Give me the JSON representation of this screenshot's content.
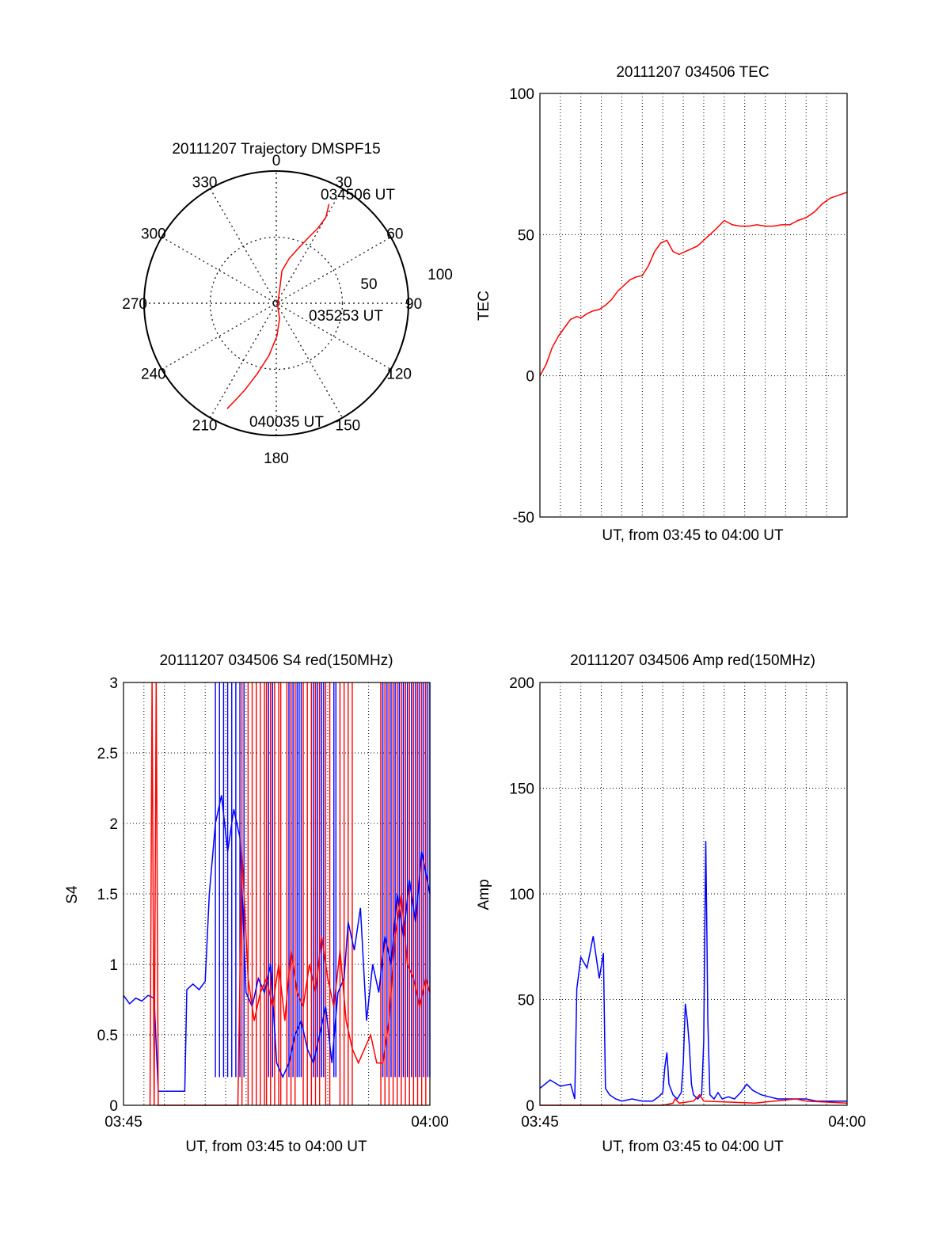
{
  "colors": {
    "red": "#ff0000",
    "blue": "#0000ff",
    "axis": "#000000",
    "grid": "#000000"
  },
  "chart_data": [
    {
      "type": "polar",
      "title": "20111207 Trajectory DMSPF15",
      "angle_labels": [
        "0",
        "30",
        "60",
        "90",
        "120",
        "150",
        "180",
        "210",
        "240",
        "270",
        "300",
        "330"
      ],
      "radius_labels": [
        "50",
        "100"
      ],
      "rlim": [
        0,
        100
      ],
      "grid": true,
      "annotations": [
        "034506 UT",
        "035253 UT",
        "040035 UT"
      ],
      "series": [
        {
          "color": "red",
          "points": [
            [
              28,
              85
            ],
            [
              30,
              75
            ],
            [
              29,
              65
            ],
            [
              26,
              55
            ],
            [
              22,
              45
            ],
            [
              16,
              35
            ],
            [
              10,
              25
            ],
            [
              150,
              2
            ],
            [
              168,
              12
            ],
            [
              179,
              25
            ],
            [
              188,
              40
            ],
            [
              195,
              55
            ],
            [
              200,
              70
            ],
            [
              203,
              80
            ],
            [
              205,
              88
            ]
          ]
        }
      ]
    },
    {
      "type": "line",
      "title": "20111207 034506 TEC",
      "xlabel": "UT, from 03:45 to 04:00 UT",
      "ylabel": "TEC",
      "xlim": [
        0,
        15
      ],
      "ylim": [
        -50,
        100
      ],
      "yticks": [
        "-50",
        "0",
        "50",
        "100"
      ],
      "xticks": [],
      "grid": true,
      "series": [
        {
          "color": "red",
          "points": [
            [
              0,
              0
            ],
            [
              0.3,
              4
            ],
            [
              0.6,
              10
            ],
            [
              0.9,
              14
            ],
            [
              1.2,
              17
            ],
            [
              1.5,
              20
            ],
            [
              1.8,
              21
            ],
            [
              2.0,
              20.5
            ],
            [
              2.3,
              22
            ],
            [
              2.6,
              23
            ],
            [
              2.9,
              23.5
            ],
            [
              3.2,
              25
            ],
            [
              3.5,
              27
            ],
            [
              3.8,
              30
            ],
            [
              4.1,
              32
            ],
            [
              4.4,
              34
            ],
            [
              4.7,
              35
            ],
            [
              5.0,
              35.5
            ],
            [
              5.3,
              39
            ],
            [
              5.6,
              44
            ],
            [
              5.9,
              47
            ],
            [
              6.2,
              48
            ],
            [
              6.5,
              44
            ],
            [
              6.8,
              43
            ],
            [
              7.1,
              44
            ],
            [
              7.4,
              45
            ],
            [
              7.7,
              46
            ],
            [
              8.0,
              48
            ],
            [
              8.3,
              50
            ],
            [
              8.6,
              52
            ],
            [
              9.0,
              55
            ],
            [
              9.4,
              53.5
            ],
            [
              9.8,
              53
            ],
            [
              10.2,
              53
            ],
            [
              10.6,
              53.5
            ],
            [
              11.0,
              53
            ],
            [
              11.4,
              53
            ],
            [
              11.8,
              53.5
            ],
            [
              12.2,
              53.5
            ],
            [
              12.6,
              55
            ],
            [
              13.0,
              56
            ],
            [
              13.4,
              58
            ],
            [
              13.8,
              61
            ],
            [
              14.2,
              63
            ],
            [
              14.6,
              64
            ],
            [
              15.0,
              65
            ]
          ]
        }
      ]
    },
    {
      "type": "line",
      "title": "20111207 034506 S4 red(150MHz)",
      "xlabel": "UT, from 03:45 to 04:00 UT",
      "ylabel": "S4",
      "xlim": [
        0,
        15
      ],
      "ylim": [
        0,
        3
      ],
      "yticks": [
        "0",
        "0.5",
        "1",
        "1.5",
        "2",
        "2.5",
        "3"
      ],
      "xticks": [
        "03:45",
        "04:00"
      ],
      "grid": true,
      "series": [
        {
          "color": "blue",
          "points": [
            [
              0,
              0.78
            ],
            [
              0.3,
              0.72
            ],
            [
              0.6,
              0.76
            ],
            [
              0.9,
              0.74
            ],
            [
              1.2,
              0.78
            ],
            [
              1.5,
              0.76
            ],
            [
              1.7,
              0.1
            ],
            [
              2.0,
              0.1
            ],
            [
              2.4,
              0.1
            ],
            [
              2.7,
              0.1
            ],
            [
              3.0,
              0.1
            ],
            [
              3.1,
              0.82
            ],
            [
              3.4,
              0.86
            ],
            [
              3.7,
              0.82
            ],
            [
              4.0,
              0.88
            ],
            [
              4.2,
              1.5
            ],
            [
              4.5,
              2.0
            ],
            [
              4.8,
              2.2
            ],
            [
              5.1,
              1.8
            ],
            [
              5.4,
              2.1
            ],
            [
              5.7,
              1.9
            ],
            [
              6.0,
              0.8
            ],
            [
              6.3,
              0.7
            ],
            [
              6.6,
              0.9
            ],
            [
              6.9,
              0.8
            ],
            [
              7.2,
              1.0
            ],
            [
              7.5,
              0.3
            ],
            [
              7.8,
              0.2
            ],
            [
              8.1,
              0.3
            ],
            [
              8.4,
              0.5
            ],
            [
              8.7,
              0.6
            ],
            [
              9.0,
              0.4
            ],
            [
              9.3,
              0.3
            ],
            [
              9.6,
              0.5
            ],
            [
              9.9,
              0.7
            ],
            [
              10.2,
              0.3
            ],
            [
              10.5,
              0.8
            ],
            [
              10.8,
              0.9
            ],
            [
              11.0,
              1.3
            ],
            [
              11.3,
              1.1
            ],
            [
              11.6,
              1.4
            ],
            [
              11.9,
              0.6
            ],
            [
              12.2,
              1.0
            ],
            [
              12.5,
              0.8
            ],
            [
              12.8,
              1.2
            ],
            [
              13.1,
              1.0
            ],
            [
              13.4,
              1.5
            ],
            [
              13.7,
              1.2
            ],
            [
              14.0,
              1.6
            ],
            [
              14.3,
              1.3
            ],
            [
              14.6,
              1.8
            ],
            [
              15.0,
              1.5
            ]
          ]
        },
        {
          "color": "red",
          "points": [
            [
              1.3,
              0
            ],
            [
              1.4,
              3
            ],
            [
              1.5,
              0
            ],
            [
              1.6,
              3
            ],
            [
              1.7,
              0
            ],
            [
              5.6,
              0
            ],
            [
              5.8,
              1.8
            ],
            [
              6.1,
              0.9
            ],
            [
              6.4,
              0.6
            ],
            [
              6.7,
              0.8
            ],
            [
              7.0,
              0.9
            ],
            [
              7.3,
              0.7
            ],
            [
              7.6,
              1.0
            ],
            [
              7.9,
              0.6
            ],
            [
              8.2,
              1.1
            ],
            [
              8.5,
              0.8
            ],
            [
              8.8,
              0.7
            ],
            [
              9.1,
              1.0
            ],
            [
              9.4,
              0.8
            ],
            [
              9.7,
              1.2
            ],
            [
              10.0,
              0.9
            ],
            [
              10.3,
              0.7
            ],
            [
              10.6,
              1.1
            ],
            [
              10.9,
              0.6
            ],
            [
              11.2,
              0.4
            ],
            [
              11.5,
              0.3
            ],
            [
              11.8,
              0.4
            ],
            [
              12.1,
              0.5
            ],
            [
              12.4,
              0.3
            ],
            [
              12.7,
              0.3
            ],
            [
              13.0,
              0.6
            ],
            [
              13.3,
              1.2
            ],
            [
              13.6,
              1.5
            ],
            [
              13.9,
              1.0
            ],
            [
              14.2,
              0.9
            ],
            [
              14.5,
              0.7
            ],
            [
              14.8,
              0.9
            ],
            [
              15.0,
              0.8
            ]
          ]
        }
      ],
      "spikes": [
        {
          "color": "blue",
          "x": [
            4.5,
            4.7,
            4.9,
            5.1,
            5.3,
            5.5,
            5.7,
            5.9,
            7.1,
            7.2,
            7.3,
            8.1,
            8.2,
            8.3,
            8.4,
            8.5,
            8.6,
            8.7,
            9.3,
            9.4,
            9.5,
            9.6,
            9.7,
            9.8,
            10.3,
            10.4,
            12.6,
            12.7,
            12.8,
            12.9,
            13.0,
            13.1,
            13.2,
            13.3,
            13.4,
            13.5,
            13.6,
            13.7,
            13.8,
            13.9,
            14.0,
            14.1,
            14.2,
            14.3,
            14.4,
            14.5,
            14.6,
            14.7,
            14.8,
            14.9,
            15.0
          ],
          "low": 0.2,
          "high": 3
        },
        {
          "color": "red",
          "x": [
            5.8,
            6.1,
            6.3,
            6.5,
            6.7,
            6.9,
            7.0,
            7.2,
            7.4,
            7.6,
            7.7,
            8.0,
            8.2,
            8.4,
            8.8,
            9.0,
            9.2,
            9.4,
            9.6,
            9.9,
            10.1,
            10.6,
            10.8,
            11.0,
            11.2,
            12.6,
            12.8,
            13.0,
            13.2,
            13.4,
            13.6,
            13.8,
            14.0,
            14.2,
            14.4,
            14.6,
            14.8
          ],
          "low": 0,
          "high": 3
        }
      ]
    },
    {
      "type": "line",
      "title": "20111207 034506 Amp red(150MHz)",
      "xlabel": "UT, from 03:45 to 04:00 UT",
      "ylabel": "Amp",
      "xlim": [
        0,
        15
      ],
      "ylim": [
        0,
        200
      ],
      "yticks": [
        "0",
        "50",
        "100",
        "150",
        "200"
      ],
      "xticks": [
        "03:45",
        "04:00"
      ],
      "grid": true,
      "series": [
        {
          "color": "blue",
          "points": [
            [
              0,
              8
            ],
            [
              0.5,
              12
            ],
            [
              1.0,
              9
            ],
            [
              1.5,
              10
            ],
            [
              1.7,
              3
            ],
            [
              1.8,
              55
            ],
            [
              2.0,
              70
            ],
            [
              2.3,
              65
            ],
            [
              2.6,
              80
            ],
            [
              2.9,
              60
            ],
            [
              3.1,
              72
            ],
            [
              3.2,
              8
            ],
            [
              3.4,
              5
            ],
            [
              3.7,
              3
            ],
            [
              4.0,
              2
            ],
            [
              4.5,
              3
            ],
            [
              5.0,
              2
            ],
            [
              5.5,
              2
            ],
            [
              5.8,
              4
            ],
            [
              6.0,
              6
            ],
            [
              6.1,
              18
            ],
            [
              6.2,
              25
            ],
            [
              6.3,
              10
            ],
            [
              6.5,
              5
            ],
            [
              6.7,
              3
            ],
            [
              6.9,
              6
            ],
            [
              7.0,
              20
            ],
            [
              7.1,
              48
            ],
            [
              7.2,
              40
            ],
            [
              7.3,
              28
            ],
            [
              7.4,
              10
            ],
            [
              7.5,
              5
            ],
            [
              7.7,
              3
            ],
            [
              7.9,
              5
            ],
            [
              8.0,
              30
            ],
            [
              8.1,
              125
            ],
            [
              8.15,
              85
            ],
            [
              8.2,
              40
            ],
            [
              8.3,
              5
            ],
            [
              8.5,
              3
            ],
            [
              8.7,
              6
            ],
            [
              8.9,
              3
            ],
            [
              9.2,
              4
            ],
            [
              9.5,
              3
            ],
            [
              9.8,
              6
            ],
            [
              10.1,
              10
            ],
            [
              10.4,
              7
            ],
            [
              10.8,
              5
            ],
            [
              11.2,
              4
            ],
            [
              11.6,
              3
            ],
            [
              12.0,
              3
            ],
            [
              12.5,
              3
            ],
            [
              13.0,
              3
            ],
            [
              13.5,
              2
            ],
            [
              14.0,
              2
            ],
            [
              14.5,
              2
            ],
            [
              15.0,
              2
            ]
          ]
        },
        {
          "color": "red",
          "points": [
            [
              0,
              0
            ],
            [
              1.7,
              0
            ],
            [
              3.2,
              0
            ],
            [
              6.0,
              0
            ],
            [
              6.5,
              1
            ],
            [
              6.6,
              3
            ],
            [
              6.8,
              1
            ],
            [
              7.5,
              2
            ],
            [
              7.8,
              5
            ],
            [
              8.0,
              2
            ],
            [
              10.5,
              1
            ],
            [
              12.5,
              3
            ],
            [
              13.0,
              2
            ],
            [
              15.0,
              1
            ]
          ]
        }
      ]
    }
  ]
}
